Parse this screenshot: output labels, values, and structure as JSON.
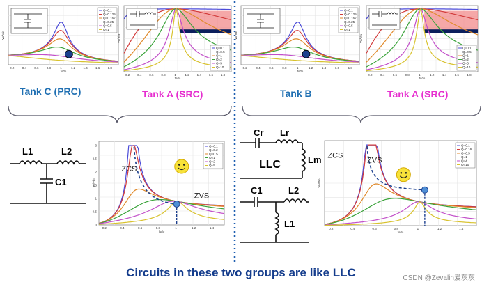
{
  "labels": {
    "tank_c": "Tank C (PRC)",
    "tank_a_left": "Tank A (SRC)",
    "tank_b": "Tank B",
    "tank_a_right": "Tank A (SRC)",
    "caption": "Circuits in these two groups are like LLC",
    "watermark": "CSDN @Zevalin爱灰灰"
  },
  "circuit_labels": {
    "l1": "L1",
    "l2": "L2",
    "c1": "C1",
    "cr": "Cr",
    "lr": "Lr",
    "lm": "Lm",
    "llc": "LLC",
    "c1b": "C1",
    "l2b": "L2",
    "l1b": "L1"
  },
  "region_labels": {
    "zcs": "ZCS",
    "zvs": "ZVS",
    "zcs_r": "ZCS",
    "zvs_r": "ZVS"
  },
  "colors": {
    "blue_label": "#1f6fb2",
    "pink_label": "#e62fcf",
    "caption": "#143c8c",
    "divider": "#1f5fb0",
    "marker": "#2e6fc6",
    "shade": "#f28b8b",
    "navy": "#0b1f5c"
  },
  "chart_data": [
    {
      "id": "tank-c-gain",
      "type": "line",
      "xlabel": "fs/fo",
      "ylabel": "Vo/Vin",
      "xticks": [
        "0.2",
        "0.4",
        "0.6",
        "0.8",
        "1",
        "1.2",
        "1.4",
        "1.6",
        "1.8"
      ],
      "legend": [
        "Q=0.1",
        "Q=0.125",
        "Q=0.167",
        "Q=0.25",
        "Q=0.5",
        "Q=1"
      ]
    },
    {
      "id": "tank-a-left-gain",
      "type": "line",
      "xlabel": "fs/fo",
      "ylabel": "Vo/Vin",
      "xticks": [
        "0.2",
        "0.4",
        "0.6",
        "0.8",
        "1",
        "1.2",
        "1.4",
        "1.6",
        "1.8"
      ],
      "legend": [
        "Q=0.1",
        "Q=0.5",
        "Q=1",
        "Q=2",
        "Q=5",
        "Q=10"
      ]
    },
    {
      "id": "tank-b-gain",
      "type": "line",
      "xlabel": "fs/fo",
      "ylabel": "Vo/Vin",
      "xticks": [
        "0.2",
        "0.4",
        "0.6",
        "0.8",
        "1",
        "1.2",
        "1.4",
        "1.6",
        "1.8"
      ],
      "legend": [
        "Q=0.1",
        "Q=0.125",
        "Q=0.167",
        "Q=0.25",
        "Q=0.5",
        "Q=1"
      ]
    },
    {
      "id": "tank-a-right-gain",
      "type": "line",
      "xlabel": "fs/fo",
      "ylabel": "Vo/Vin",
      "xticks": [
        "0.2",
        "0.4",
        "0.6",
        "0.8",
        "1",
        "1.2",
        "1.4",
        "1.6",
        "1.8"
      ],
      "legend": [
        "Q=0.1",
        "Q=0.5",
        "Q=1",
        "Q=2",
        "Q=5",
        "Q=10"
      ]
    },
    {
      "id": "llc-left-gain",
      "type": "line",
      "xlabel": "fs/fo",
      "ylabel": "Vo/Vin",
      "xticks": [
        "0.2",
        "0.4",
        "0.6",
        "0.8",
        "1",
        "1.2",
        "1.4"
      ],
      "yticks": [
        "0",
        "0.5",
        "1",
        "1.5",
        "2",
        "2.5",
        "3"
      ],
      "legend": [
        "Q=0.1",
        "Q=0.2",
        "Q=0.5",
        "Q=1",
        "Q=2",
        "Q=5"
      ]
    },
    {
      "id": "llc-right-gain",
      "type": "line",
      "xlabel": "fs/fo",
      "ylabel": "Vo/Vin",
      "xticks": [
        "0.2",
        "0.4",
        "0.6",
        "0.8",
        "1",
        "1.2",
        "1.4"
      ],
      "legend": [
        "Q=0.1",
        "Q=0.16",
        "Q=0.5",
        "Q=1",
        "Q=4",
        "Q=10"
      ]
    }
  ]
}
